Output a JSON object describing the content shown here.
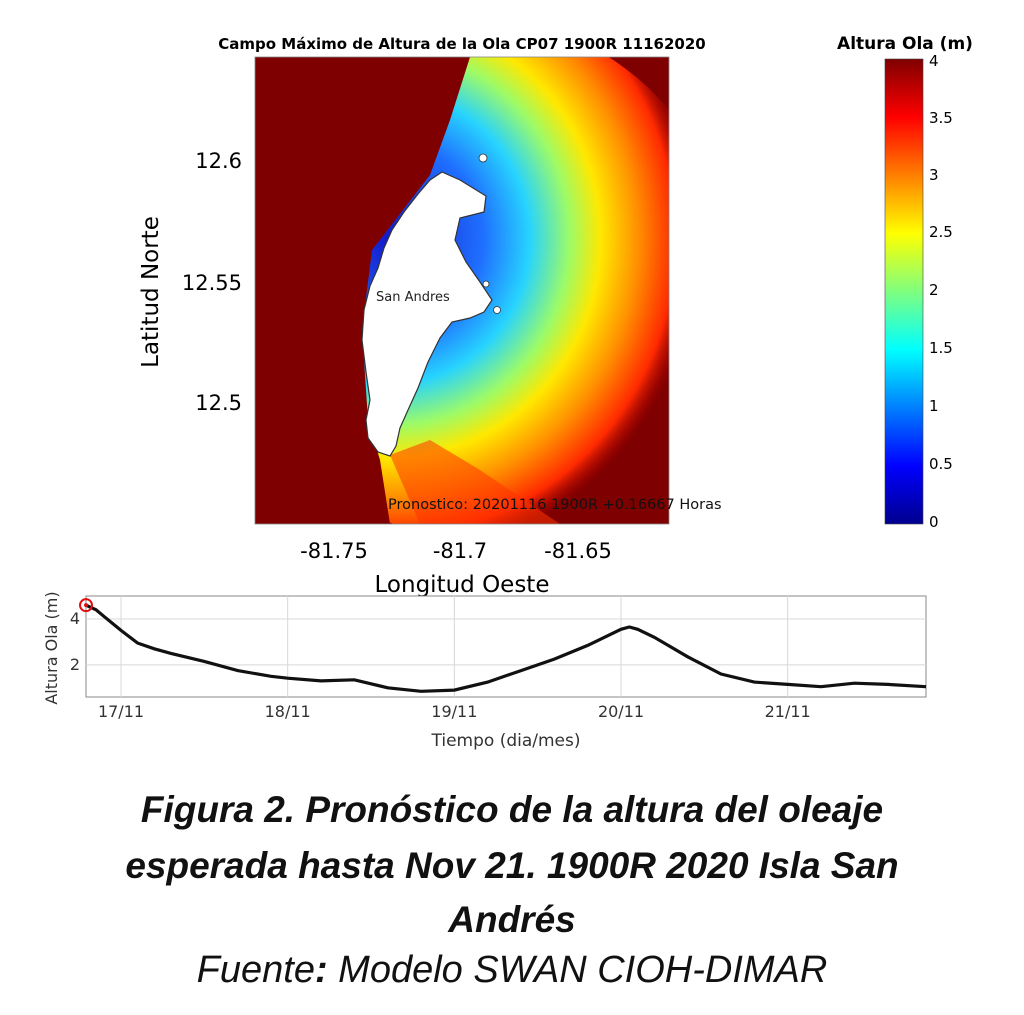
{
  "map": {
    "title": "Campo Máximo de Altura de la Ola CP07 1900R 11162020",
    "xlabel": "Longitud Oeste",
    "ylabel": "Latitud Norte",
    "x_ticks": [
      "-81.75",
      "-81.7",
      "-81.65"
    ],
    "y_ticks": [
      "12.6",
      "12.55",
      "12.5"
    ],
    "place_label": "San Andres",
    "forecast_label": "Pronostico: 20201116 1900R +0.16667 Horas"
  },
  "colorbar": {
    "title": "Altura Ola (m)",
    "ticks": [
      "4",
      "3.5",
      "3",
      "2.5",
      "2",
      "1.5",
      "1",
      "0.5",
      "0"
    ],
    "colors": [
      "#7f0000",
      "#ff0000",
      "#ff7f00",
      "#ffff00",
      "#7fff7f",
      "#00ffff",
      "#007fff",
      "#0000ff",
      "#00008f"
    ]
  },
  "chart_data": {
    "type": "line",
    "xlabel": "Tiempo (dia/mes)",
    "ylabel": "Altura Ola (m)",
    "x_ticks": [
      "17/11",
      "18/11",
      "19/11",
      "20/11",
      "21/11"
    ],
    "y_ticks": [
      "2",
      "4"
    ],
    "xlim": [
      16.79,
      21.83
    ],
    "ylim": [
      0.6,
      5.0
    ],
    "series": [
      {
        "x": [
          16.79,
          16.85,
          16.9,
          17.0,
          17.1,
          17.2,
          17.3,
          17.5,
          17.7,
          17.9,
          18.0,
          18.2,
          18.4,
          18.6,
          18.8,
          19.0,
          19.2,
          19.4,
          19.6,
          19.8,
          20.0,
          20.05,
          20.1,
          20.2,
          20.4,
          20.6,
          20.8,
          21.0,
          21.2,
          21.4,
          21.6,
          21.83
        ],
        "y": [
          4.6,
          4.4,
          4.1,
          3.5,
          2.95,
          2.7,
          2.5,
          2.15,
          1.75,
          1.5,
          1.42,
          1.3,
          1.35,
          1.0,
          0.85,
          0.9,
          1.25,
          1.75,
          2.25,
          2.85,
          3.55,
          3.65,
          3.55,
          3.2,
          2.35,
          1.6,
          1.25,
          1.15,
          1.05,
          1.2,
          1.15,
          1.05
        ]
      }
    ],
    "marker": {
      "x": 16.79,
      "y": 4.6
    }
  },
  "caption": {
    "line1": "Figura 2. Pronóstico de la altura del oleaje",
    "line2": "esperada hasta Nov 21. 1900R 2020 Isla San",
    "line3": "Andrés",
    "source_prefix": "Fuente",
    "source_colon": ":",
    "source_text": " Modelo SWAN CIOH-DIMAR"
  }
}
